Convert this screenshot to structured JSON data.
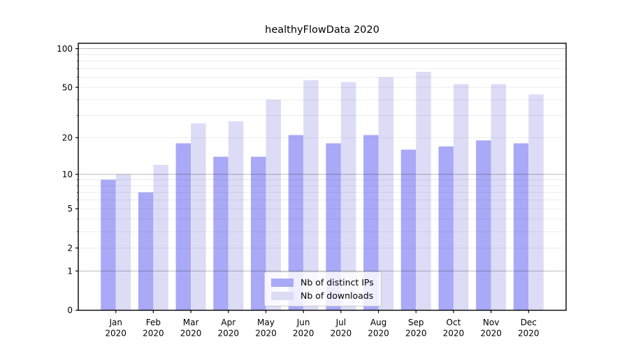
{
  "title": "healthyFlowData 2020",
  "chart_data": {
    "type": "bar",
    "title": "healthyFlowData 2020",
    "categories": [
      "Jan",
      "Feb",
      "Mar",
      "Apr",
      "May",
      "Jun",
      "Jul",
      "Aug",
      "Sep",
      "Oct",
      "Nov",
      "Dec"
    ],
    "category_year": "2020",
    "series": [
      {
        "name": "Nb of distinct IPs",
        "color": "#a9a9f7",
        "values": [
          9,
          7,
          18,
          14,
          14,
          21,
          18,
          21,
          16,
          17,
          19,
          18
        ]
      },
      {
        "name": "Nb of downloads",
        "color": "#dcdcf7",
        "values": [
          10,
          12,
          26,
          27,
          40,
          57,
          55,
          60,
          66,
          53,
          53,
          44
        ]
      }
    ],
    "yscale": "log1p",
    "ylim": [
      0,
      110
    ],
    "ytick_labels": [
      "100",
      "50",
      "20",
      "10",
      "5",
      "2",
      "1",
      "0"
    ],
    "yticks": [
      100,
      50,
      20,
      10,
      5,
      2,
      1,
      0
    ],
    "major_gridlines": [
      1,
      10,
      100
    ],
    "minor_gridlines": [
      2,
      3,
      4,
      5,
      6,
      7,
      8,
      9,
      20,
      30,
      40,
      50,
      60,
      70,
      80,
      90
    ],
    "grid": true,
    "legend_position": "lower center",
    "colors": {
      "bar_distinct_ips": "#a9a9f7",
      "bar_downloads": "#dcdcf7",
      "major_grid": "rgba(0,0,0,0.28)",
      "minor_grid": "rgba(0,0,0,0.08)",
      "spine": "#000000"
    }
  }
}
